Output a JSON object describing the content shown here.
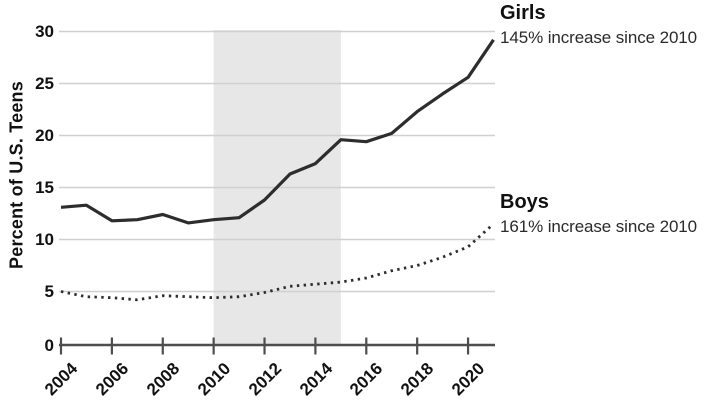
{
  "chart_data": {
    "type": "line",
    "title": "",
    "xlabel": "",
    "ylabel": "Percent of U.S. Teens",
    "x": [
      2004,
      2005,
      2006,
      2007,
      2008,
      2009,
      2010,
      2011,
      2012,
      2013,
      2014,
      2015,
      2016,
      2017,
      2018,
      2019,
      2020,
      2021
    ],
    "series": [
      {
        "name": "Girls",
        "annotation": "145% increase since 2010",
        "line_style": "solid",
        "values": [
          13.1,
          13.3,
          11.8,
          11.9,
          12.4,
          11.6,
          11.9,
          12.1,
          13.8,
          16.3,
          17.3,
          19.6,
          19.4,
          20.2,
          22.3,
          24.0,
          25.6,
          29.2
        ]
      },
      {
        "name": "Boys",
        "annotation": "161% increase since 2010",
        "line_style": "dotted",
        "values": [
          5.0,
          4.5,
          4.4,
          4.2,
          4.6,
          4.5,
          4.4,
          4.5,
          4.9,
          5.5,
          5.7,
          5.9,
          6.3,
          7.0,
          7.5,
          8.3,
          9.3,
          11.5
        ]
      }
    ],
    "x_ticks": [
      2004,
      2006,
      2008,
      2010,
      2012,
      2014,
      2016,
      2018,
      2020
    ],
    "y_ticks": [
      0,
      5,
      10,
      15,
      20,
      25,
      30
    ],
    "xlim": [
      2004,
      2021
    ],
    "ylim": [
      0,
      30
    ],
    "grid": "horizontal",
    "legend_position": "right-annotations",
    "shaded_region": {
      "from": 2010,
      "to": 2015
    },
    "colors": {
      "line": "#2d2d2d",
      "grid": "#d0d0d0",
      "axis": "#4d4d4d",
      "band": "#e7e7e7",
      "text": "#111111"
    }
  }
}
